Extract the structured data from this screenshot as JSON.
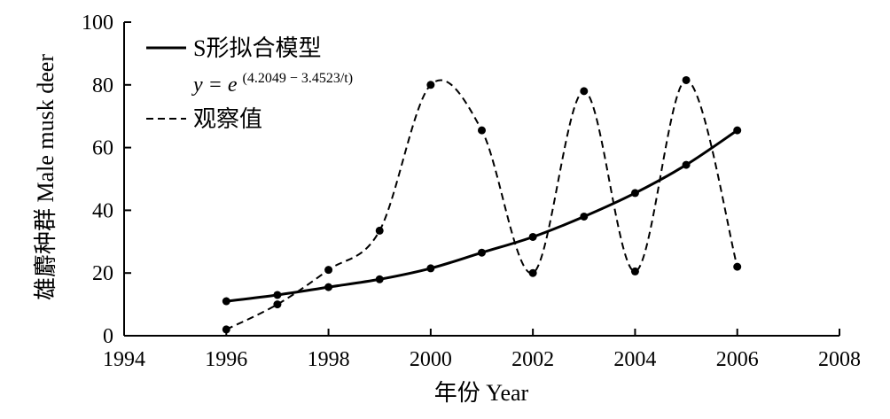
{
  "chart_data": {
    "type": "line",
    "xlabel": "年份 Year",
    "ylabel": "雄麝种群 Male musk deer",
    "xlim": [
      1994,
      2008
    ],
    "ylim": [
      0,
      100
    ],
    "xticks": [
      "1994",
      "1996",
      "1998",
      "2000",
      "2002",
      "2004",
      "2006",
      "2008"
    ],
    "yticks": [
      "0",
      "20",
      "40",
      "60",
      "80",
      "100"
    ],
    "legend_position": "top-left",
    "series": [
      {
        "name": "S形拟合模型",
        "style": "solid",
        "x": [
          1996,
          1997,
          1998,
          1999,
          2000,
          2001,
          2002,
          2003,
          2004,
          2005,
          2006
        ],
        "values": [
          11,
          13,
          15.5,
          18,
          21.5,
          26.5,
          31.5,
          38,
          45.5,
          54.5,
          65.5
        ]
      },
      {
        "name": "观察值",
        "style": "dashed",
        "x": [
          1996,
          1997,
          1998,
          1999,
          2000,
          2001,
          2002,
          2003,
          2004,
          2005,
          2006
        ],
        "values": [
          2,
          10,
          21,
          33.5,
          80,
          65.5,
          20,
          78,
          20.5,
          81.5,
          22
        ]
      }
    ],
    "annotations": {
      "formula_prefix": "y = e",
      "formula_exponent": "(4.2049 − 3.4523/t)"
    }
  }
}
